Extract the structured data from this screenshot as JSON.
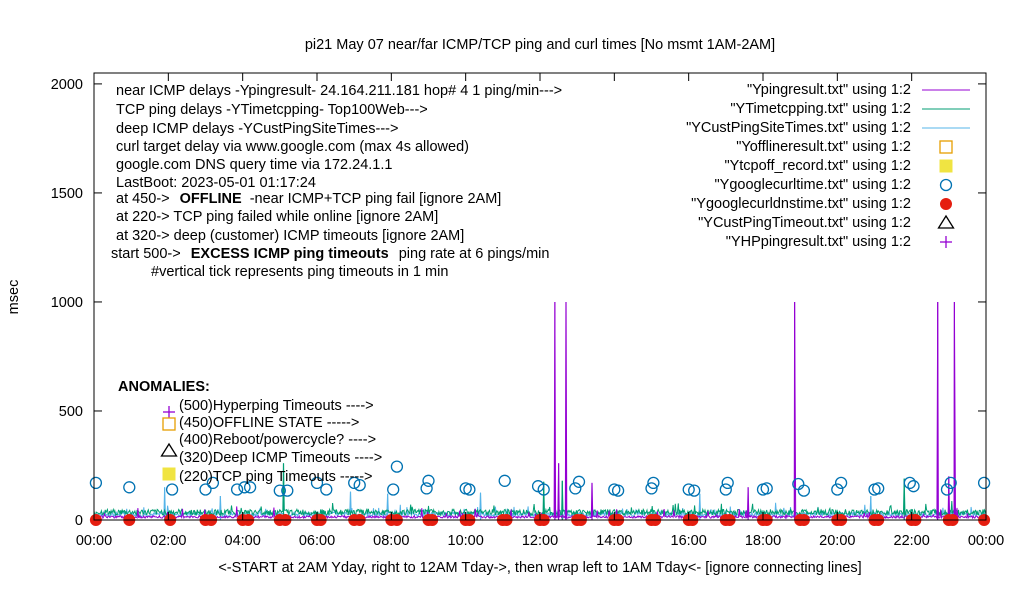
{
  "chart_data": {
    "type": "line",
    "title": "pi21 May 07  near/far ICMP/TCP ping and curl times [No msmt 1AM-2AM]",
    "ylabel": "msec",
    "xlabel": "<-START at 2AM Yday, right to 12AM Tday->, then wrap left to 1AM Tday<- [ignore connecting lines]",
    "ylim": [
      0,
      2050
    ],
    "xlim": [
      0,
      24
    ],
    "grid": false,
    "legend_position": "top-right",
    "y_ticks": [
      "0",
      "500",
      "1000",
      "1500",
      "2000"
    ],
    "x_ticks": [
      "00:00",
      "02:00",
      "04:00",
      "06:00",
      "08:00",
      "10:00",
      "12:00",
      "14:00",
      "16:00",
      "18:00",
      "20:00",
      "22:00",
      "00:00"
    ],
    "notes": [
      "near ICMP delays -Ypingresult- 24.164.211.181 hop# 4 1 ping/min--->",
      "TCP ping delays -YTimetcpping- Top100Web--->",
      "deep ICMP delays -YCustPingSiteTimes--->",
      "curl target delay via www.google.com (max 4s allowed)",
      "google.com DNS query time via 172.24.1.1",
      "LastBoot: 2023-05-01 01:17:24"
    ],
    "notes_b": {
      "offline_prefix": "at 450->",
      "offline_bold": "OFFLINE",
      "offline_rest": "-near ICMP+TCP ping fail [ignore 2AM]",
      "tcpfail": "at 220-> TCP ping failed while online [ignore 2AM]",
      "deep": "at 320-> deep (customer) ICMP timeouts [ignore 2AM]",
      "excess_prefix": "start 500->",
      "excess_bold": "EXCESS ICMP ping timeouts",
      "excess_rest": "ping rate at 6 pings/min",
      "vertical": "#vertical tick represents ping timeouts in 1 min"
    },
    "anomalies": {
      "title": "ANOMALIES:",
      "items": [
        "(500)Hyperping Timeouts ---->",
        "(450)OFFLINE STATE ----->",
        "(400)Reboot/powercycle? ---->",
        "(320)Deep ICMP Timeouts ---->",
        "(220)TCP ping Timeouts ----->"
      ]
    },
    "series": [
      {
        "name": "\"Ypingresult.txt\" using 1:2",
        "color": "#9400d3",
        "style": "line",
        "baseline_ms": 12,
        "spikes": [
          {
            "x": 12.4,
            "y": 1000
          },
          {
            "x": 12.7,
            "y": 1000
          },
          {
            "x": 18.85,
            "y": 1000
          },
          {
            "x": 22.7,
            "y": 1000
          },
          {
            "x": 23.15,
            "y": 1000
          },
          {
            "x": 12.5,
            "y": 260
          },
          {
            "x": 13.4,
            "y": 170
          },
          {
            "x": 17.6,
            "y": 150
          },
          {
            "x": 23.0,
            "y": 200
          }
        ]
      },
      {
        "name": "\"YTimetcpping.txt\" using 1:2",
        "color": "#009e73",
        "style": "line",
        "baseline_ms": 30,
        "spikes": [
          {
            "x": 5.1,
            "y": 260
          },
          {
            "x": 12.1,
            "y": 175
          },
          {
            "x": 12.6,
            "y": 180
          },
          {
            "x": 21.8,
            "y": 190
          }
        ]
      },
      {
        "name": "\"YCustPingSiteTimes.txt\" using 1:2",
        "color": "#56b4e9",
        "style": "line",
        "baseline_ms": 22,
        "spikes": [
          {
            "x": 1.9,
            "y": 150
          },
          {
            "x": 3.4,
            "y": 110
          },
          {
            "x": 6.9,
            "y": 130
          },
          {
            "x": 7.9,
            "y": 120
          },
          {
            "x": 10.4,
            "y": 125
          },
          {
            "x": 16.3,
            "y": 120
          },
          {
            "x": 20.9,
            "y": 110
          }
        ]
      },
      {
        "name": "\"Yofflineresult.txt\" using 1:2",
        "color": "#e69f00",
        "style": "open-square",
        "points": []
      },
      {
        "name": "\"Ytcpoff_record.txt\" using 1:2",
        "color": "#f0e442",
        "style": "filled-square",
        "points": []
      },
      {
        "name": "\"Ygooglecurltime.txt\" using 1:2",
        "color": "#0072b2",
        "style": "open-circle",
        "points": [
          [
            0.05,
            170
          ],
          [
            0.95,
            150
          ],
          [
            2.1,
            140
          ],
          [
            3.0,
            140
          ],
          [
            3.2,
            170
          ],
          [
            3.85,
            140
          ],
          [
            4.05,
            150
          ],
          [
            4.2,
            150
          ],
          [
            5.0,
            135
          ],
          [
            5.2,
            135
          ],
          [
            6.0,
            170
          ],
          [
            6.25,
            140
          ],
          [
            7.0,
            170
          ],
          [
            7.15,
            160
          ],
          [
            8.05,
            140
          ],
          [
            8.15,
            245
          ],
          [
            8.95,
            145
          ],
          [
            9.0,
            180
          ],
          [
            10.0,
            145
          ],
          [
            10.1,
            140
          ],
          [
            11.05,
            180
          ],
          [
            11.95,
            155
          ],
          [
            12.1,
            140
          ],
          [
            12.95,
            145
          ],
          [
            13.05,
            175
          ],
          [
            14.0,
            140
          ],
          [
            14.1,
            135
          ],
          [
            15.0,
            145
          ],
          [
            15.05,
            170
          ],
          [
            16.0,
            140
          ],
          [
            16.15,
            135
          ],
          [
            17.0,
            140
          ],
          [
            17.05,
            170
          ],
          [
            18.0,
            140
          ],
          [
            18.1,
            145
          ],
          [
            18.95,
            165
          ],
          [
            19.1,
            135
          ],
          [
            20.0,
            140
          ],
          [
            20.1,
            170
          ],
          [
            21.0,
            140
          ],
          [
            21.1,
            145
          ],
          [
            21.95,
            170
          ],
          [
            22.05,
            155
          ],
          [
            22.95,
            140
          ],
          [
            23.05,
            170
          ],
          [
            23.95,
            170
          ]
        ]
      },
      {
        "name": "\"Ygooglecurldnstime.txt\" using 1:2",
        "color": "#e51e10",
        "style": "filled-circle",
        "points": [
          [
            0.05,
            0
          ],
          [
            0.95,
            0
          ],
          [
            2.05,
            0
          ],
          [
            3.0,
            0
          ],
          [
            3.15,
            0
          ],
          [
            4.0,
            0
          ],
          [
            4.15,
            0
          ],
          [
            5.0,
            0
          ],
          [
            5.15,
            0
          ],
          [
            6.0,
            0
          ],
          [
            6.1,
            0
          ],
          [
            7.0,
            0
          ],
          [
            7.15,
            0
          ],
          [
            8.0,
            0
          ],
          [
            8.15,
            0
          ],
          [
            9.0,
            0
          ],
          [
            9.1,
            0
          ],
          [
            10.0,
            0
          ],
          [
            10.1,
            0
          ],
          [
            11.0,
            0
          ],
          [
            11.1,
            0
          ],
          [
            12.0,
            0
          ],
          [
            12.1,
            0
          ],
          [
            13.0,
            0
          ],
          [
            13.1,
            0
          ],
          [
            14.0,
            0
          ],
          [
            14.1,
            0
          ],
          [
            15.0,
            0
          ],
          [
            15.1,
            0
          ],
          [
            16.0,
            0
          ],
          [
            16.1,
            0
          ],
          [
            17.0,
            0
          ],
          [
            17.1,
            0
          ],
          [
            18.0,
            0
          ],
          [
            18.1,
            0
          ],
          [
            19.0,
            0
          ],
          [
            19.1,
            0
          ],
          [
            20.0,
            0
          ],
          [
            20.1,
            0
          ],
          [
            21.0,
            0
          ],
          [
            21.1,
            0
          ],
          [
            22.0,
            0
          ],
          [
            22.1,
            0
          ],
          [
            23.0,
            0
          ],
          [
            23.1,
            0
          ],
          [
            23.95,
            0
          ]
        ]
      },
      {
        "name": "\"YCustPingTimeout.txt\" using 1:2",
        "color": "#000000",
        "style": "open-triangle",
        "points": []
      },
      {
        "name": "\"YHPpingresult.txt\" using 1:2",
        "color": "#9400d3",
        "style": "plus",
        "points": []
      }
    ]
  }
}
